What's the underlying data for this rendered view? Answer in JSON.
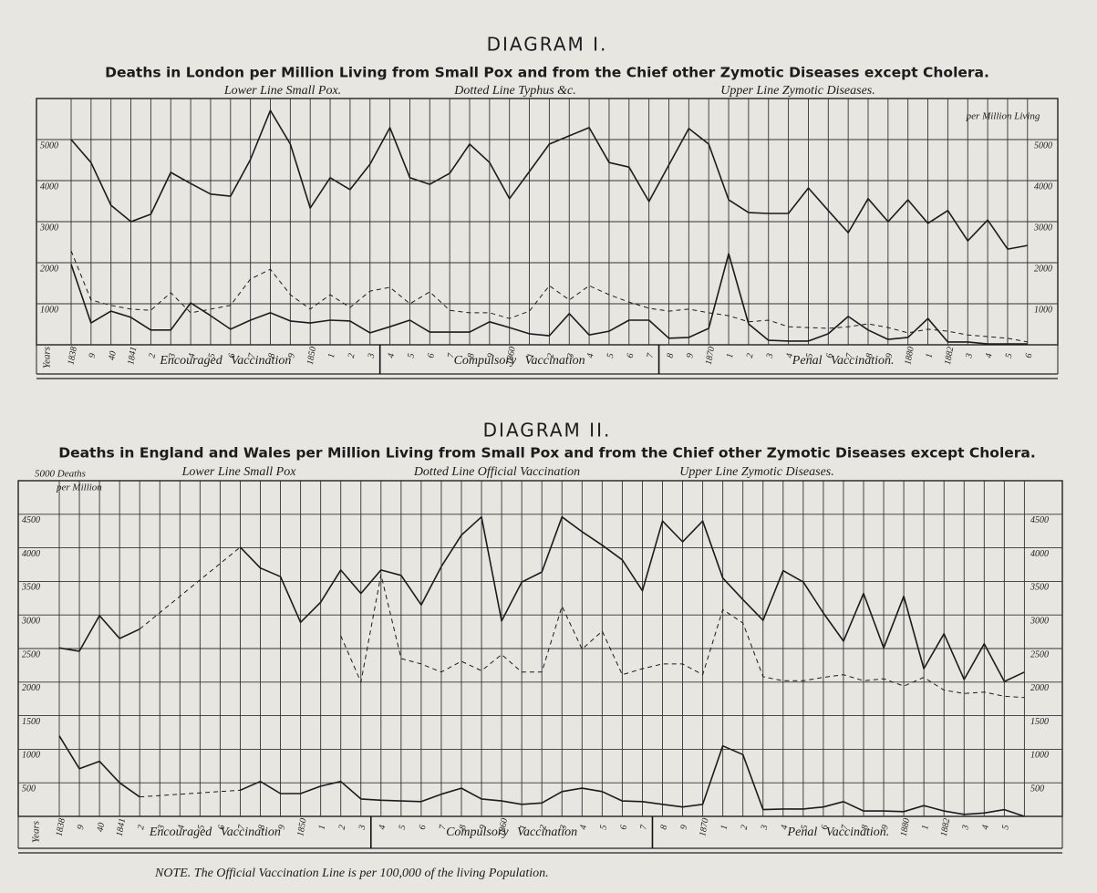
{
  "chart_data": [
    {
      "type": "line",
      "title": "DIAGRAM I.",
      "subtitle": "Deaths in London per Million Living from Small Pox and from the Chief other Zymotic Diseases except Cholera.",
      "y_label": [
        "per Million Living"
      ],
      "x_label": "Years",
      "categories": [
        "1838",
        "9",
        "40",
        "1841",
        "2",
        "3",
        "4",
        "5",
        "6",
        "7",
        "8",
        "9",
        "1850",
        "1",
        "2",
        "3",
        "4",
        "5",
        "6",
        "7",
        "8",
        "9",
        "1860",
        "1",
        "2",
        "3",
        "4",
        "5",
        "6",
        "7",
        "8",
        "9",
        "1870",
        "1",
        "2",
        "3",
        "4",
        "5",
        "6",
        "7",
        "8",
        "9",
        "1880",
        "1",
        "1882",
        "3",
        "4",
        "5",
        "6"
      ],
      "eras": [
        "Encouraged Vaccination",
        "Compulsory Vaccination",
        "Penal Vaccination."
      ],
      "ylim": [
        0,
        6000
      ],
      "yticks": [
        1000,
        2000,
        3000,
        4000,
        5000
      ],
      "grid": true,
      "series": [
        {
          "name": "Lower Line Small Pox.",
          "color": "#1c1c1c",
          "style": "solid",
          "values": [
            1960,
            530,
            820,
            670,
            360,
            360,
            1020,
            710,
            380,
            600,
            780,
            580,
            530,
            600,
            580,
            290,
            440,
            600,
            310,
            310,
            310,
            560,
            420,
            270,
            220,
            760,
            240,
            330,
            600,
            600,
            160,
            180,
            400,
            2220,
            510,
            110,
            90,
            90,
            270,
            690,
            360,
            130,
            180,
            640,
            70,
            70,
            20,
            20,
            20
          ]
        },
        {
          "name": "Dotted Line Typhus &c.",
          "color": "#1c1c1c",
          "style": "dashed",
          "values": [
            2290,
            1090,
            960,
            870,
            840,
            1270,
            780,
            870,
            960,
            1600,
            1840,
            1220,
            870,
            1220,
            910,
            1310,
            1400,
            1000,
            1290,
            840,
            780,
            780,
            640,
            820,
            1440,
            1090,
            1440,
            1220,
            1040,
            890,
            820,
            870,
            780,
            710,
            560,
            600,
            440,
            420,
            400,
            440,
            510,
            420,
            290,
            380,
            330,
            240,
            200,
            160,
            70
          ]
        },
        {
          "name": "Upper Line Zymotic Diseases.",
          "color": "#1c1c1c",
          "style": "solid",
          "values": [
            5000,
            4440,
            3400,
            3000,
            3180,
            4200,
            3930,
            3670,
            3620,
            4510,
            5710,
            4890,
            3330,
            4070,
            3780,
            4400,
            5290,
            4070,
            3910,
            4180,
            4890,
            4440,
            3560,
            4220,
            4890,
            5090,
            5290,
            4440,
            4330,
            3490,
            4380,
            5270,
            4890,
            3530,
            3220,
            3200,
            3200,
            3820,
            3270,
            2730,
            3560,
            3000,
            3530,
            2960,
            3270,
            2530,
            3040,
            2330,
            2420
          ]
        }
      ]
    },
    {
      "type": "line",
      "title": "DIAGRAM II.",
      "subtitle": "Deaths in England and Wales per Million Living from Small Pox and from the Chief other Zymotic Diseases except Cholera.",
      "y_label": [
        "5000 Deaths",
        "per Million"
      ],
      "x_label": "Years",
      "note": "NOTE. The Official Vaccination Line is per 100,000 of the living Population.",
      "categories": [
        "1838",
        "9",
        "40",
        "1841",
        "2",
        "3",
        "4",
        "5",
        "6",
        "7",
        "8",
        "9",
        "1850",
        "1",
        "2",
        "3",
        "4",
        "5",
        "6",
        "7",
        "8",
        "9",
        "1860",
        "1",
        "2",
        "3",
        "4",
        "5",
        "6",
        "7",
        "8",
        "9",
        "1870",
        "1",
        "2",
        "3",
        "4",
        "5",
        "6",
        "7",
        "8",
        "9",
        "1880",
        "1",
        "1882",
        "3",
        "4",
        "5",
        null
      ],
      "eras": [
        "Encouraged Vaccination",
        "Compulsory Vaccination",
        "Penal Vaccination."
      ],
      "ylim": [
        0,
        5000
      ],
      "yticks": [
        500,
        1000,
        1500,
        2000,
        2500,
        3000,
        3500,
        4000,
        4500
      ],
      "grid": true,
      "series": [
        {
          "name": "Lower Line Small Pox",
          "color": "#1c1c1c",
          "style": "solid",
          "values": [
            1200,
            710,
            820,
            500,
            290,
            null,
            null,
            null,
            null,
            390,
            520,
            340,
            340,
            450,
            520,
            260,
            240,
            230,
            220,
            330,
            420,
            260,
            230,
            180,
            200,
            370,
            420,
            370,
            230,
            220,
            180,
            140,
            180,
            1050,
            920,
            100,
            110,
            110,
            140,
            220,
            80,
            80,
            70,
            160,
            80,
            30,
            50,
            100,
            0
          ]
        },
        {
          "name": "Dotted Line Official Vaccination",
          "color": "#1c1c1c",
          "style": "dashed",
          "values": [
            null,
            null,
            null,
            null,
            null,
            null,
            null,
            null,
            null,
            null,
            null,
            null,
            null,
            null,
            2690,
            2000,
            3600,
            2350,
            2270,
            2150,
            2310,
            2170,
            2410,
            2150,
            2150,
            3130,
            2490,
            2760,
            2110,
            2200,
            2270,
            2270,
            2110,
            3080,
            2880,
            2080,
            2020,
            2020,
            2070,
            2110,
            2020,
            2050,
            1940,
            2070,
            1880,
            1830,
            1850,
            1790,
            1770
          ]
        },
        {
          "name": "Upper Line Zymotic Diseases.",
          "color": "#1c1c1c",
          "style": "solid",
          "values": [
            2510,
            2460,
            2990,
            2650,
            2790,
            null,
            null,
            null,
            null,
            4010,
            3700,
            3570,
            2890,
            3190,
            3670,
            3320,
            3670,
            3590,
            3150,
            3720,
            4190,
            4460,
            2910,
            3490,
            3640,
            4460,
            4240,
            4040,
            3820,
            3360,
            4400,
            4090,
            4400,
            3550,
            3230,
            2920,
            3660,
            3490,
            3030,
            2610,
            3320,
            2510,
            3280,
            2200,
            2720,
            2040,
            2570,
            2010,
            2150
          ]
        }
      ]
    }
  ]
}
